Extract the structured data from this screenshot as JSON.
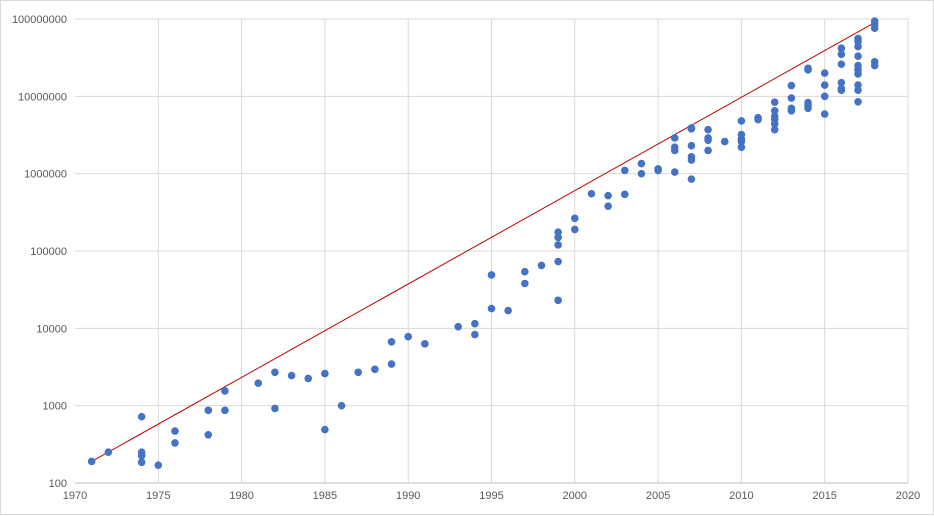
{
  "chart_data": {
    "type": "scatter",
    "title": "",
    "xlabel": "",
    "ylabel": "",
    "xlim": [
      1970,
      2020
    ],
    "ylim": [
      100,
      100000000
    ],
    "y_scale": "log",
    "grid": true,
    "legend": "none",
    "colors": {
      "points": "#4472c4",
      "trendline": "#c00000"
    },
    "x_ticks": [
      "1970",
      "1975",
      "1980",
      "1985",
      "1990",
      "1995",
      "2000",
      "2005",
      "2010",
      "2015",
      "2020"
    ],
    "y_ticks": [
      "100",
      "1000",
      "10000",
      "100000",
      "1000000",
      "10000000",
      "100000000"
    ],
    "trendline": {
      "x": [
        1971,
        2018
      ],
      "y": [
        190,
        90000000
      ]
    },
    "points": [
      [
        1971,
        190
      ],
      [
        1972,
        250
      ],
      [
        1974,
        720
      ],
      [
        1974,
        250
      ],
      [
        1974,
        225
      ],
      [
        1974,
        185
      ],
      [
        1975,
        170
      ],
      [
        1976,
        470
      ],
      [
        1976,
        330
      ],
      [
        1978,
        870
      ],
      [
        1978,
        420
      ],
      [
        1979,
        1550
      ],
      [
        1979,
        870
      ],
      [
        1981,
        1950
      ],
      [
        1982,
        2700
      ],
      [
        1982,
        920
      ],
      [
        1983,
        2450
      ],
      [
        1984,
        2250
      ],
      [
        1985,
        2600
      ],
      [
        1985,
        490
      ],
      [
        1986,
        1000
      ],
      [
        1987,
        2700
      ],
      [
        1988,
        2950
      ],
      [
        1989,
        6700
      ],
      [
        1989,
        3450
      ],
      [
        1990,
        7800
      ],
      [
        1991,
        6300
      ],
      [
        1993,
        10500
      ],
      [
        1994,
        11500
      ],
      [
        1994,
        8300
      ],
      [
        1995,
        49000
      ],
      [
        1995,
        18000
      ],
      [
        1996,
        17000
      ],
      [
        1997,
        54000
      ],
      [
        1997,
        38000
      ],
      [
        1998,
        65000
      ],
      [
        1999,
        175000
      ],
      [
        1999,
        150000
      ],
      [
        1999,
        120000
      ],
      [
        1999,
        73000
      ],
      [
        1999,
        23000
      ],
      [
        2000,
        265000
      ],
      [
        2000,
        190000
      ],
      [
        2001,
        550000
      ],
      [
        2002,
        520000
      ],
      [
        2002,
        380000
      ],
      [
        2003,
        1100000
      ],
      [
        2003,
        540000
      ],
      [
        2004,
        1350000
      ],
      [
        2004,
        1000000
      ],
      [
        2005,
        1150000
      ],
      [
        2005,
        1100000
      ],
      [
        2006,
        2900000
      ],
      [
        2006,
        2200000
      ],
      [
        2006,
        2000000
      ],
      [
        2006,
        1050000
      ],
      [
        2007,
        3900000
      ],
      [
        2007,
        3800000
      ],
      [
        2007,
        2300000
      ],
      [
        2007,
        1650000
      ],
      [
        2007,
        1500000
      ],
      [
        2007,
        850000
      ],
      [
        2008,
        3700000
      ],
      [
        2008,
        2900000
      ],
      [
        2008,
        2700000
      ],
      [
        2008,
        2000000
      ],
      [
        2009,
        2600000
      ],
      [
        2010,
        4800000
      ],
      [
        2010,
        3200000
      ],
      [
        2010,
        2800000
      ],
      [
        2010,
        2600000
      ],
      [
        2010,
        2200000
      ],
      [
        2011,
        5300000
      ],
      [
        2011,
        5000000
      ],
      [
        2012,
        8400000
      ],
      [
        2012,
        6500000
      ],
      [
        2012,
        5500000
      ],
      [
        2012,
        5000000
      ],
      [
        2012,
        4400000
      ],
      [
        2012,
        3700000
      ],
      [
        2013,
        13800000
      ],
      [
        2013,
        9500000
      ],
      [
        2013,
        7000000
      ],
      [
        2013,
        6500000
      ],
      [
        2014,
        23000000
      ],
      [
        2014,
        22000000
      ],
      [
        2014,
        8300000
      ],
      [
        2014,
        7700000
      ],
      [
        2014,
        7000000
      ],
      [
        2015,
        20000000
      ],
      [
        2015,
        14000000
      ],
      [
        2015,
        10000000
      ],
      [
        2015,
        5900000
      ],
      [
        2016,
        42000000
      ],
      [
        2016,
        35000000
      ],
      [
        2016,
        26000000
      ],
      [
        2016,
        15000000
      ],
      [
        2016,
        12500000
      ],
      [
        2016,
        12000000
      ],
      [
        2017,
        56000000
      ],
      [
        2017,
        51000000
      ],
      [
        2017,
        44000000
      ],
      [
        2017,
        33000000
      ],
      [
        2017,
        25000000
      ],
      [
        2017,
        22000000
      ],
      [
        2017,
        19500000
      ],
      [
        2017,
        14000000
      ],
      [
        2017,
        12000000
      ],
      [
        2017,
        8500000
      ],
      [
        2018,
        94000000
      ],
      [
        2018,
        85000000
      ],
      [
        2018,
        76000000
      ],
      [
        2018,
        28000000
      ],
      [
        2018,
        25000000
      ]
    ]
  }
}
